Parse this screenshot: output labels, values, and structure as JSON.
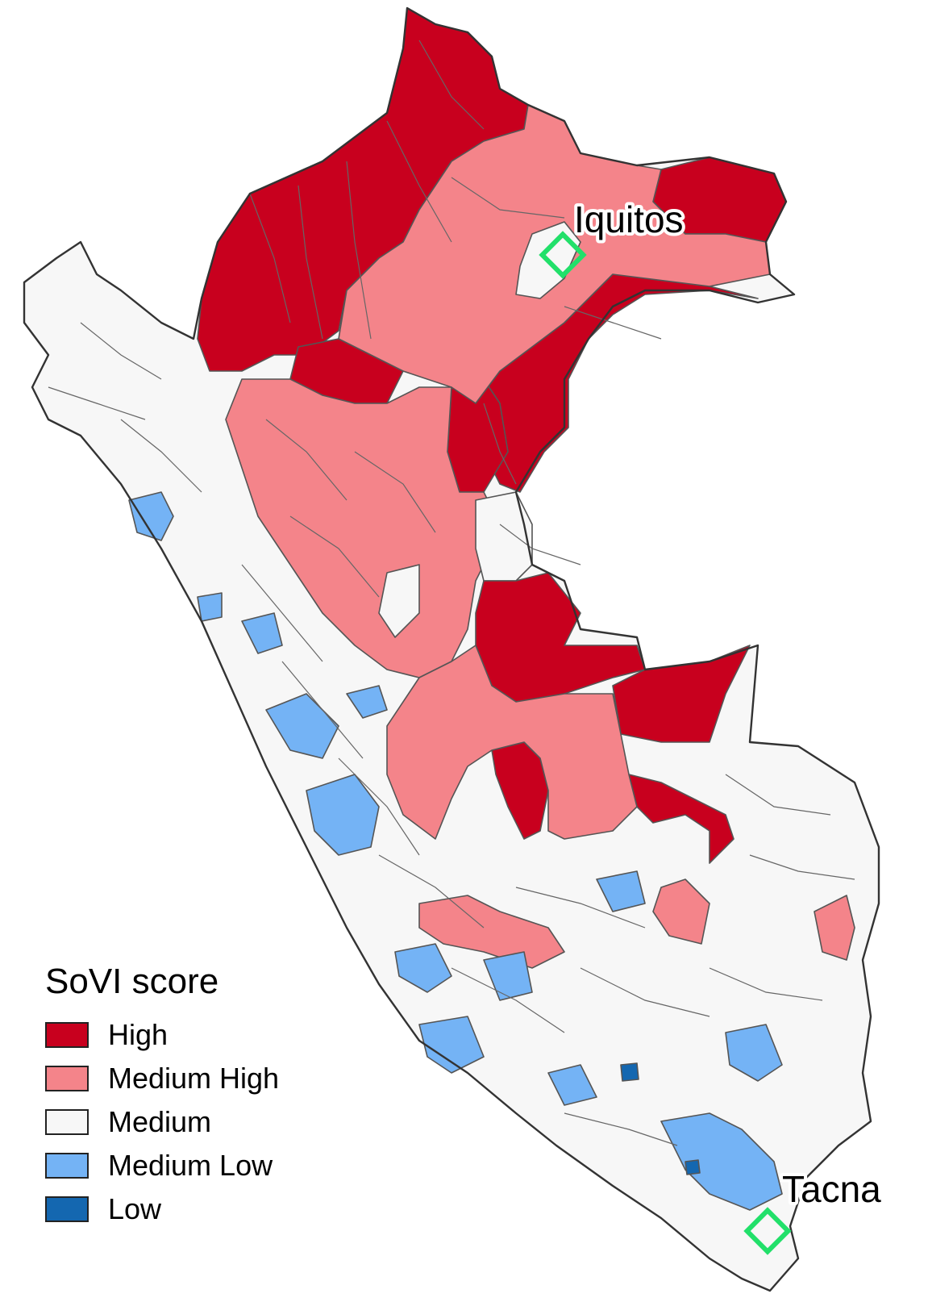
{
  "legend": {
    "title": "SoVI score",
    "items": [
      {
        "label": "High",
        "color": "#c8001e"
      },
      {
        "label": "Medium High",
        "color": "#f4848a"
      },
      {
        "label": "Medium",
        "color": "#f7f7f7"
      },
      {
        "label": "Medium Low",
        "color": "#74b3f5"
      },
      {
        "label": "Low",
        "color": "#1467b0"
      }
    ]
  },
  "cities": [
    {
      "name": "Iquitos",
      "marker_color": "#22e06a"
    },
    {
      "name": "Tacna",
      "marker_color": "#22e06a"
    }
  ],
  "colors": {
    "high": "#c8001e",
    "medium_high": "#f4848a",
    "medium": "#f7f7f7",
    "medium_low": "#74b3f5",
    "low": "#1467b0",
    "boundary": "#555555"
  }
}
